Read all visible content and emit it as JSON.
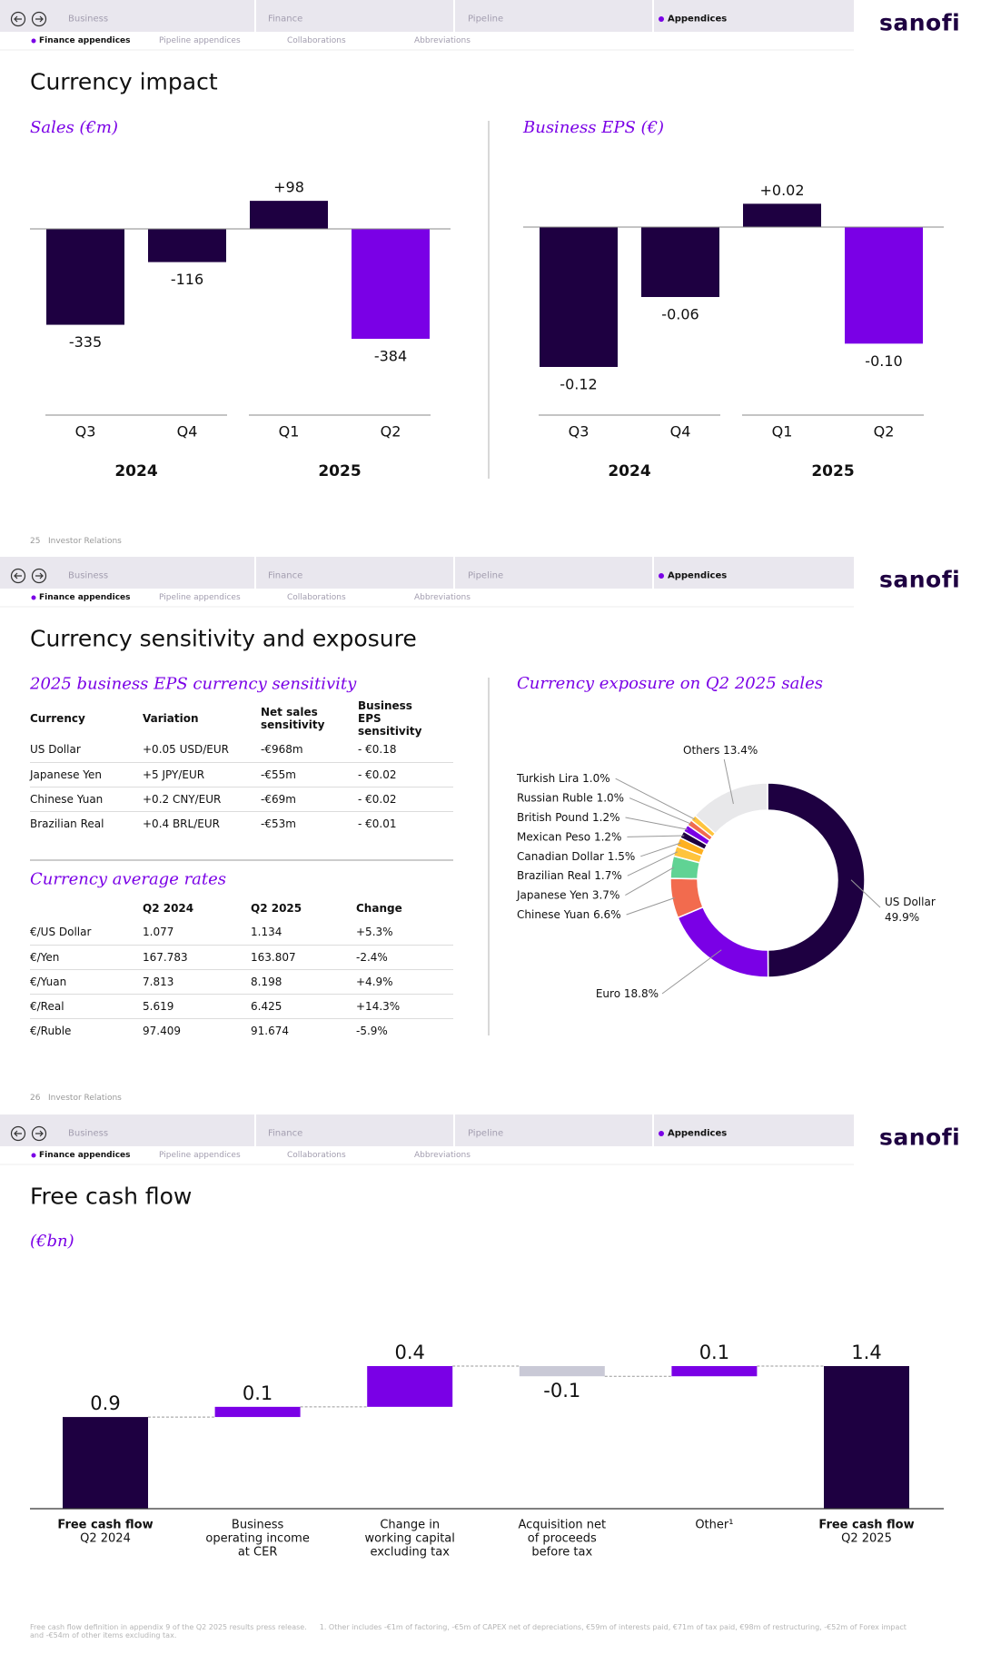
{
  "nav": {
    "tabs": [
      "Business",
      "Finance",
      "Pipeline",
      "Appendices"
    ],
    "active_tab": 3,
    "subtabs": [
      "Finance appendices",
      "Pipeline appendices",
      "Collaborations",
      "Abbreviations"
    ],
    "active_subtab": 0,
    "logo": "sanofi"
  },
  "footer_label": "Investor Relations",
  "slides": [
    {
      "page": "25",
      "title": "Currency impact"
    },
    {
      "page": "26",
      "title": "Currency sensitivity and exposure",
      "tables": [
        {
          "title": "2025 business EPS currency sensitivity",
          "headers": [
            "Currency",
            "Variation",
            "Net sales sensitivity",
            "Business EPS sensitivity"
          ],
          "rows": [
            [
              "US Dollar",
              "+0.05 USD/EUR",
              "-€968m",
              "- €0.18"
            ],
            [
              "Japanese Yen",
              "+5 JPY/EUR",
              "-€55m",
              "- €0.02"
            ],
            [
              "Chinese Yuan",
              "+0.2 CNY/EUR",
              "-€69m",
              "- €0.02"
            ],
            [
              "Brazilian Real",
              "+0.4 BRL/EUR",
              "-€53m",
              "- €0.01"
            ]
          ]
        },
        {
          "title": "Currency average rates",
          "headers": [
            null,
            "Q2 2024",
            "Q2 2025",
            "Change"
          ],
          "rows": [
            [
              "€/US Dollar",
              "1.077",
              "1.134",
              "+5.3%"
            ],
            [
              "€/Yen",
              "167.783",
              "163.807",
              "-2.4%"
            ],
            [
              "€/Yuan",
              "7.813",
              "8.198",
              "+4.9%"
            ],
            [
              "€/Real",
              "5.619",
              "6.425",
              "+14.3%"
            ],
            [
              "€/Ruble",
              "97.409",
              "91.674",
              "-5.9%"
            ]
          ]
        }
      ]
    },
    {
      "title": "Free cash flow",
      "footnotes": [
        "Free cash flow definition in appendix 9 of the Q2 2025 results press release.",
        "1. Other includes -€1m of factoring, -€5m of CAPEX net of depreciations, €59m of interests paid, €71m of tax paid, €98m of restructuring, -€52m of Forex impact and -€54m of other items excluding tax."
      ]
    }
  ],
  "chart_data": [
    {
      "type": "bar",
      "title": "Sales (€m)",
      "groups": [
        {
          "name": "2024",
          "categories": [
            "Q3",
            "Q4"
          ]
        },
        {
          "name": "2025",
          "categories": [
            "Q1",
            "Q2"
          ]
        }
      ],
      "values": [
        -335,
        -116,
        98,
        -384
      ],
      "value_labels": [
        "-335",
        "-116",
        "+98",
        "-384"
      ],
      "colors": [
        "#1e0041",
        "#1e0041",
        "#1e0041",
        "#7a00e6"
      ]
    },
    {
      "type": "bar",
      "title": "Business EPS (€)",
      "groups": [
        {
          "name": "2024",
          "categories": [
            "Q3",
            "Q4"
          ]
        },
        {
          "name": "2025",
          "categories": [
            "Q1",
            "Q2"
          ]
        }
      ],
      "values": [
        -0.12,
        -0.06,
        0.02,
        -0.1
      ],
      "value_labels": [
        "-0.12",
        "-0.06",
        "+0.02",
        "-0.10"
      ],
      "colors": [
        "#1e0041",
        "#1e0041",
        "#1e0041",
        "#7a00e6"
      ]
    },
    {
      "type": "donut",
      "title": "Currency exposure on Q2 2025 sales",
      "categories": [
        "US Dollar",
        "Euro",
        "Chinese Yuan",
        "Japanese Yen",
        "Brazilian Real",
        "Canadian Dollar",
        "Mexican Peso",
        "British Pound",
        "Russian Ruble",
        "Turkish Lira",
        "Others"
      ],
      "values": [
        49.9,
        18.8,
        6.6,
        3.7,
        1.7,
        1.5,
        1.2,
        1.2,
        1.0,
        1.0,
        13.4
      ],
      "value_labels": [
        "49.9%",
        "18.8%",
        "6.6%",
        "3.7%",
        "1.7%",
        "1.5%",
        "1.2%",
        "1.2%",
        "1.0%",
        "1.0%",
        "13.4%"
      ],
      "colors": [
        "#1e0041",
        "#7a00e6",
        "#f26b4e",
        "#60d394",
        "#ffc43d",
        "#ffb020",
        "#1e0041",
        "#7a00e6",
        "#f26b4e",
        "#ffc43d",
        "#e8e8ea"
      ]
    },
    {
      "type": "waterfall",
      "title": "(€bn)",
      "categories": [
        [
          "Free cash flow",
          "Q2 2024"
        ],
        [
          "Business",
          "operating income",
          "at CER"
        ],
        [
          "Change in",
          "working capital",
          "excluding tax"
        ],
        [
          "Acquisition net",
          "of proceeds",
          "before tax"
        ],
        [
          "Other¹"
        ],
        [
          "Free cash flow",
          "Q2 2025"
        ]
      ],
      "values": [
        0.9,
        0.1,
        0.4,
        -0.1,
        0.1,
        1.4
      ],
      "colors": {
        "total": "#1e0041",
        "increase": "#7a00e6",
        "decrease": "#c9c9d6"
      }
    }
  ]
}
